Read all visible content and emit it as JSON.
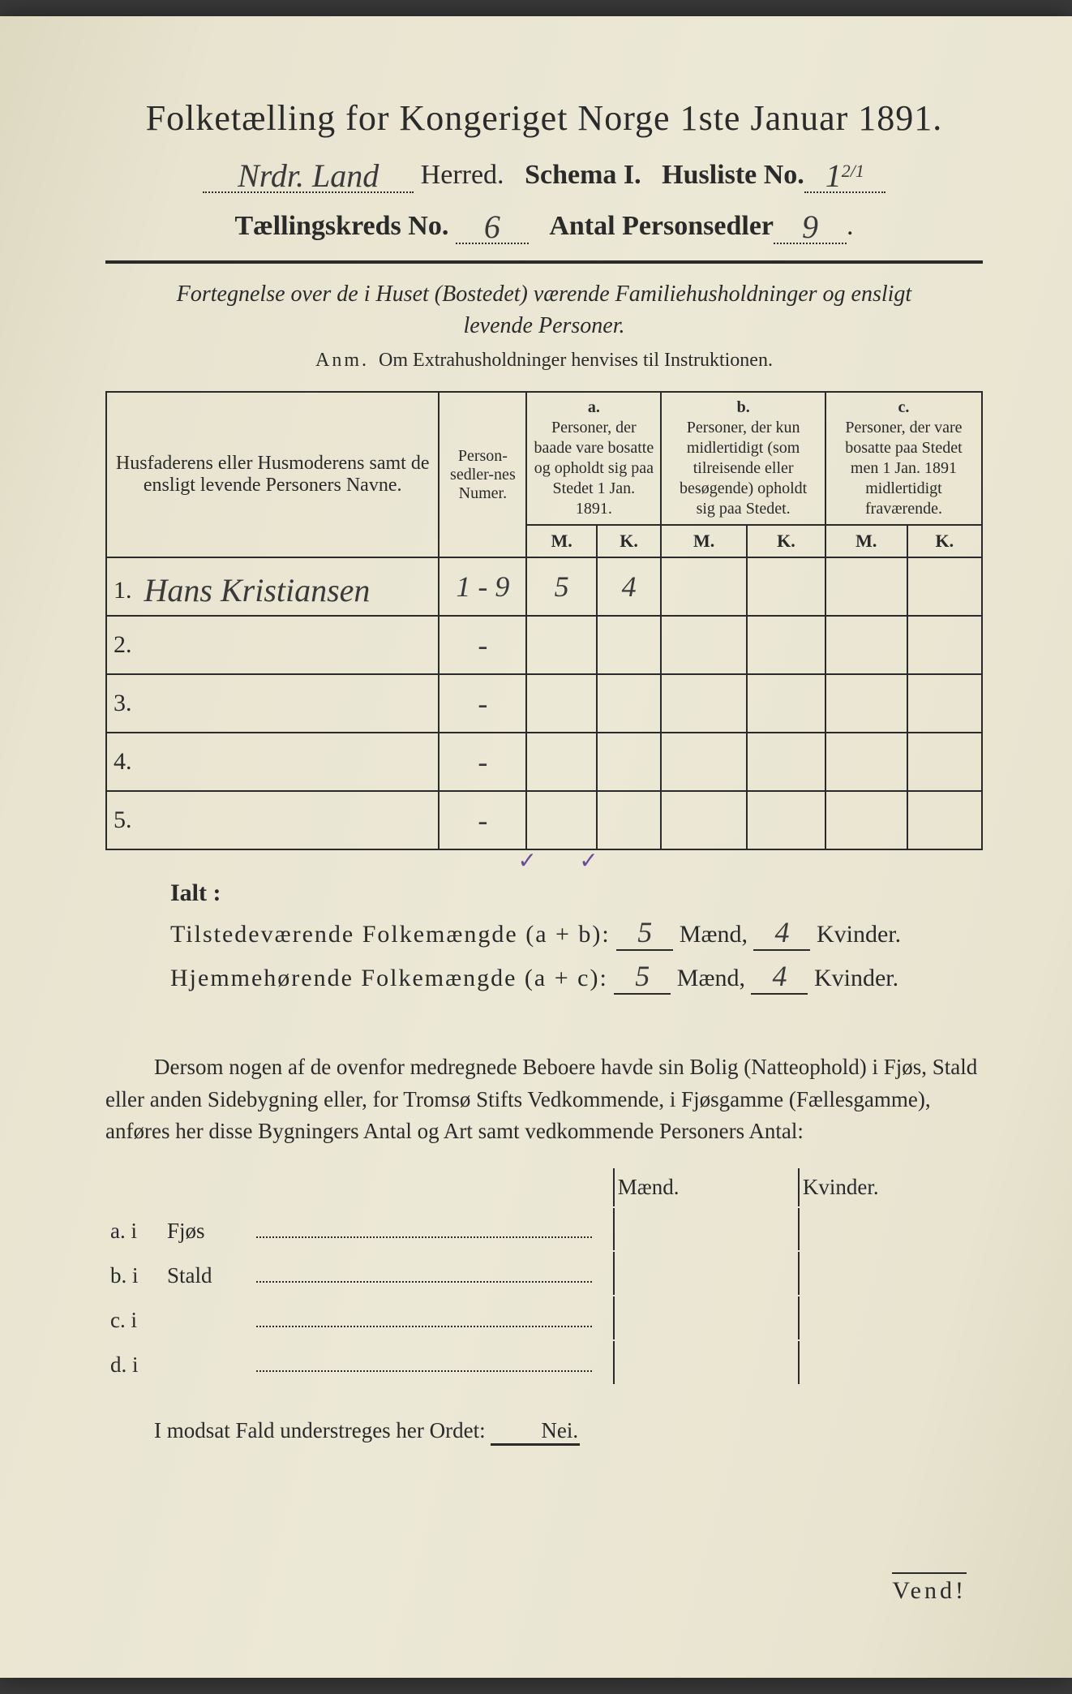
{
  "colors": {
    "paper": "#e8e4d0",
    "ink": "#2a2a2a",
    "handwriting": "#3a3a3a",
    "checkmark": "#6a4a9a",
    "background": "#3a3a3a"
  },
  "typography": {
    "title_fontsize_pt": 33,
    "body_fontsize_pt": 20,
    "handwriting_family": "cursive"
  },
  "header": {
    "title": "Folketælling for Kongeriget Norge 1ste Januar 1891.",
    "herred_hw": "Nrdr. Land",
    "herred_label": "Herred.",
    "schema_label": "Schema I.",
    "husliste_label": "Husliste No.",
    "husliste_hw": "1",
    "husliste_sup_hw": "2/1",
    "kreds_label": "Tællingskreds No.",
    "kreds_hw": "6",
    "sedler_label": "Antal Personsedler",
    "sedler_hw": "9"
  },
  "subheader": {
    "line1": "Fortegnelse over de i Huset (Bostedet) værende Familiehusholdninger og ensligt",
    "line2": "levende Personer.",
    "anm_lead": "Anm.",
    "anm_text": "Om Extrahusholdninger henvises til Instruktionen."
  },
  "table": {
    "col_name": "Husfaderens eller Husmoderens samt de ensligt levende Personers Navne.",
    "col_num": "Person-sedler-nes Numer.",
    "group_a_label": "a.",
    "group_a_text": "Personer, der baade vare bosatte og opholdt sig paa Stedet 1 Jan. 1891.",
    "group_b_label": "b.",
    "group_b_text": "Personer, der kun midlertidigt (som tilreisende eller besøgende) opholdt sig paa Stedet.",
    "group_c_label": "c.",
    "group_c_text": "Personer, der vare bosatte paa Stedet men 1 Jan. 1891 midlertidigt fraværende.",
    "m_label": "M.",
    "k_label": "K.",
    "rows": [
      {
        "n": "1.",
        "name_hw": "Hans Kristiansen",
        "num_hw": "1 - 9",
        "a_m": "5",
        "a_k": "4",
        "b_m": "",
        "b_k": "",
        "c_m": "",
        "c_k": ""
      },
      {
        "n": "2.",
        "name_hw": "",
        "num_hw": "-",
        "a_m": "",
        "a_k": "",
        "b_m": "",
        "b_k": "",
        "c_m": "",
        "c_k": ""
      },
      {
        "n": "3.",
        "name_hw": "",
        "num_hw": "-",
        "a_m": "",
        "a_k": "",
        "b_m": "",
        "b_k": "",
        "c_m": "",
        "c_k": ""
      },
      {
        "n": "4.",
        "name_hw": "",
        "num_hw": "-",
        "a_m": "",
        "a_k": "",
        "b_m": "",
        "b_k": "",
        "c_m": "",
        "c_k": ""
      },
      {
        "n": "5.",
        "name_hw": "",
        "num_hw": "-",
        "a_m": "",
        "a_k": "",
        "b_m": "",
        "b_k": "",
        "c_m": "",
        "c_k": ""
      }
    ],
    "check_a_m": "✓",
    "check_a_k": "✓"
  },
  "totals": {
    "ialt": "Ialt :",
    "line1_label": "Tilstedeværende  Folkemængde (a + b):",
    "line1_m_hw": "5",
    "line1_k_hw": "4",
    "line2_label": "Hjemmehørende  Folkemængde (a + c):",
    "line2_m_hw": "5",
    "line2_k_hw": "4",
    "maend": "Mænd,",
    "kvinder": "Kvinder."
  },
  "paragraph": {
    "text": "Dersom nogen af de ovenfor medregnede Beboere havde sin Bolig (Natteophold) i Fjøs, Stald eller anden Sidebygning eller, for Tromsø Stifts Vedkommende, i Fjøsgamme (Fællesgamme), anføres her disse Bygningers Antal og Art samt vedkommende Personers Antal:"
  },
  "side_table": {
    "maend": "Mænd.",
    "kvinder": "Kvinder.",
    "rows": [
      {
        "label": "a.  i",
        "place": "Fjøs"
      },
      {
        "label": "b.  i",
        "place": "Stald"
      },
      {
        "label": "c.  i",
        "place": ""
      },
      {
        "label": "d.  i",
        "place": ""
      }
    ]
  },
  "footer": {
    "modsat": "I modsat Fald understreges her Ordet:",
    "nei": "Nei.",
    "vend": "Vend!"
  }
}
